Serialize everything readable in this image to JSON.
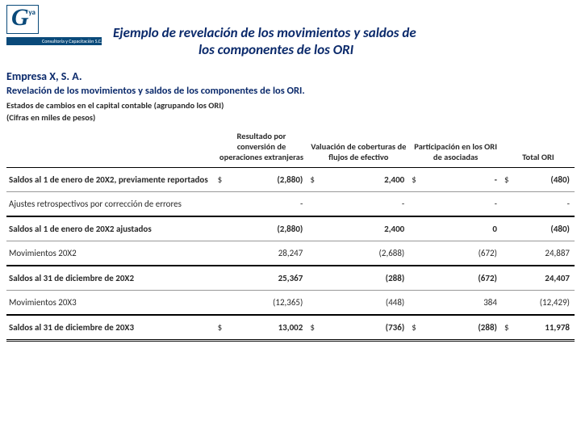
{
  "logo": {
    "g": "G",
    "ya": "ya",
    "tagline": "Consultoría y Capacitación S.C."
  },
  "header": {
    "line1": "Ejemplo de revelación de los movimientos y saldos de",
    "line2": "los componentes de los ORI"
  },
  "report": {
    "company": "Empresa X, S. A.",
    "title": "Revelación de los movimientos y saldos de los componentes de los ORI.",
    "subtitle1": "Estados de cambios en el capital contable (agrupando los ORI)",
    "subtitle2": "(Cifras en miles de pesos)"
  },
  "table": {
    "columns": [
      "Resultado por conversión de operaciones extranjeras",
      "Valuación de coberturas de flujos de efectivo",
      "Participación en los ORI de asociadas",
      "Total ORI"
    ],
    "currency": "$",
    "rows": [
      {
        "label": "Saldos al 1 de enero de 20X2, previamente reportados",
        "bold": true,
        "cur": true,
        "v": [
          "(2,880)",
          "2,400",
          "-",
          "(480)"
        ]
      },
      {
        "label": "Ajustes retrospectivos por corrección de errores",
        "bold": false,
        "cur": false,
        "v": [
          "-",
          "-",
          "-",
          "-"
        ]
      },
      {
        "label": "Saldos al 1 de enero de 20X2 ajustados",
        "bold": true,
        "cur": false,
        "v": [
          "(2,880)",
          "2,400",
          "0",
          "(480)"
        ]
      },
      {
        "label": "Movimientos 20X2",
        "bold": false,
        "cur": false,
        "v": [
          "28,247",
          "(2,688)",
          "(672)",
          "24,887"
        ]
      },
      {
        "label": "Saldos al 31 de diciembre de 20X2",
        "bold": true,
        "cur": false,
        "v": [
          "25,367",
          "(288)",
          "(672)",
          "24,407"
        ]
      },
      {
        "label": "Movimientos 20X3",
        "bold": false,
        "cur": false,
        "v": [
          "(12,365)",
          "(448)",
          "384",
          "(12,429)"
        ]
      },
      {
        "label": "Saldos al 31 de diciembre de 20X3",
        "bold": true,
        "cur": true,
        "v": [
          "13,002",
          "(736)",
          "(288)",
          "11,978"
        ]
      }
    ]
  },
  "style": {
    "title_color": "#0b2a6b",
    "border_color": "#000000"
  }
}
